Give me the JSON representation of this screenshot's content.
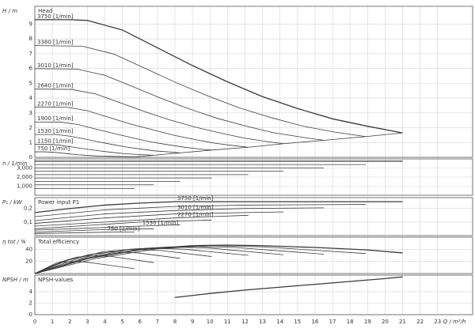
{
  "chart_data": [
    {
      "type": "line",
      "title": "Head",
      "ylabel": "H / m",
      "color": "#3a3a3a",
      "ylim": [
        0,
        10.2
      ],
      "yticks": [
        0,
        1,
        2,
        3,
        4,
        5,
        6,
        7,
        8,
        9
      ],
      "grid": true,
      "series": [
        {
          "name": "3750 [1/min]",
          "x": [
            0,
            2,
            3,
            5,
            7,
            9,
            11,
            13,
            15,
            17,
            19,
            21
          ],
          "values": [
            9.3,
            9.3,
            9.25,
            8.6,
            7.4,
            6.2,
            5.1,
            4.1,
            3.3,
            2.6,
            2.1,
            1.65
          ]
        },
        {
          "name": "3380 [1/min]",
          "x": [
            0,
            2.7,
            4.5,
            6.3,
            8.1,
            9.9,
            11.7,
            13.5,
            15.3,
            17.1,
            18.9
          ],
          "values": [
            7.55,
            7.51,
            6.98,
            6.01,
            5.03,
            4.14,
            3.33,
            2.68,
            2.11,
            1.71,
            1.4
          ]
        },
        {
          "name": "3010 [1/min]",
          "x": [
            0,
            2.4,
            4,
            5.6,
            7.2,
            8.8,
            10.4,
            12,
            13.6,
            15.3,
            16.5
          ],
          "values": [
            5.99,
            5.96,
            5.54,
            4.77,
            3.99,
            3.28,
            2.64,
            2.13,
            1.67,
            1.35,
            1.15
          ]
        },
        {
          "name": "2640 [1/min]",
          "x": [
            0,
            2.1,
            3.5,
            4.9,
            6.3,
            7.7,
            9.2,
            10.6,
            12,
            13.4,
            14.2
          ],
          "values": [
            4.61,
            4.59,
            4.27,
            3.67,
            3.08,
            2.53,
            2.03,
            1.64,
            1.29,
            1.04,
            0.92
          ]
        },
        {
          "name": "2270 [1/min]",
          "x": [
            0,
            1.8,
            3,
            4.2,
            5.4,
            6.7,
            7.9,
            9.1,
            10.3,
            11.5,
            12.2
          ],
          "values": [
            3.4,
            3.39,
            3.15,
            2.71,
            2.27,
            1.87,
            1.5,
            1.21,
            0.95,
            0.77,
            0.68
          ]
        },
        {
          "name": "1900 [1/min]",
          "x": [
            0,
            1.5,
            2.5,
            3.5,
            4.6,
            5.6,
            6.6,
            7.6,
            8.6,
            9.6,
            10.1
          ],
          "values": [
            2.39,
            2.38,
            2.21,
            1.9,
            1.59,
            1.31,
            1.05,
            0.85,
            0.67,
            0.54,
            0.49
          ]
        },
        {
          "name": "1530 [1/min]",
          "x": [
            0,
            1.2,
            2,
            2.9,
            3.7,
            4.5,
            5.3,
            6.1,
            6.9,
            7.8,
            8.3
          ],
          "values": [
            1.54,
            1.54,
            1.43,
            1.23,
            1.03,
            0.85,
            0.68,
            0.55,
            0.43,
            0.35,
            0.3
          ]
        },
        {
          "name": "1150 [1/min]",
          "x": [
            0,
            0.9,
            1.5,
            2.1,
            2.8,
            3.4,
            4,
            4.6,
            5.2,
            5.8,
            6.8
          ],
          "values": [
            0.87,
            0.87,
            0.81,
            0.7,
            0.58,
            0.48,
            0.39,
            0.31,
            0.24,
            0.2,
            0.14
          ]
        },
        {
          "name": "750 [1/min]",
          "x": [
            0,
            0.6,
            1.2,
            1.8,
            2.4,
            3,
            3.6,
            4.2,
            5.7
          ],
          "values": [
            0.37,
            0.37,
            0.33,
            0.25,
            0.18,
            0.13,
            0.09,
            0.07,
            0.03
          ]
        },
        {
          "x": [
            5.7,
            6.8,
            8.3,
            10.1,
            12.2,
            14.2,
            16.5,
            18.9,
            21
          ],
          "values": [
            0.03,
            0.14,
            0.3,
            0.49,
            0.68,
            0.92,
            1.15,
            1.4,
            1.65
          ]
        }
      ]
    },
    {
      "type": "line",
      "ylabel": "n / 1/min",
      "color": "#3a3a3a",
      "ylim": [
        0,
        4000
      ],
      "yticks": [
        {
          "value": 1000,
          "label": "1,000"
        },
        {
          "value": 2000,
          "label": "2,000"
        },
        {
          "value": 3000,
          "label": "3,000"
        }
      ],
      "grid": true,
      "series": [
        {
          "x": [
            0,
            21
          ],
          "values": [
            3750,
            3750
          ]
        },
        {
          "x": [
            0,
            18.9
          ],
          "values": [
            3380,
            3380
          ]
        },
        {
          "x": [
            0,
            16.5
          ],
          "values": [
            3010,
            3010
          ]
        },
        {
          "x": [
            0,
            14.2
          ],
          "values": [
            2640,
            2640
          ]
        },
        {
          "x": [
            0,
            12.2
          ],
          "values": [
            2270,
            2270
          ]
        },
        {
          "x": [
            0,
            10.1
          ],
          "values": [
            1900,
            1900
          ]
        },
        {
          "x": [
            0,
            8.3
          ],
          "values": [
            1530,
            1530
          ]
        },
        {
          "x": [
            0,
            6.8
          ],
          "values": [
            1150,
            1150
          ]
        },
        {
          "x": [
            0,
            5.7
          ],
          "values": [
            750,
            750
          ]
        }
      ]
    },
    {
      "type": "line",
      "title": "Power input P1",
      "ylabel": "P₁ / kW",
      "color": "#3a3a3a",
      "ylim": [
        0,
        0.28
      ],
      "yticks": [
        {
          "value": 0.1,
          "label": "0,1"
        },
        {
          "value": 0.2,
          "label": "0,2"
        }
      ],
      "grid": true,
      "series": [
        {
          "name": "3750 [1/min]",
          "x": [
            0,
            2,
            4,
            6,
            8,
            12,
            16,
            21
          ],
          "values": [
            0.17,
            0.2,
            0.225,
            0.24,
            0.25,
            0.25,
            0.25,
            0.25
          ]
        },
        {
          "x": [
            0,
            4,
            8,
            12,
            18.9
          ],
          "values": [
            0.14,
            0.19,
            0.215,
            0.225,
            0.23
          ]
        },
        {
          "name": "3010 [1/min]",
          "x": [
            0,
            4,
            8,
            12,
            16.5
          ],
          "values": [
            0.11,
            0.16,
            0.185,
            0.2,
            0.205
          ]
        },
        {
          "x": [
            0,
            4,
            8,
            14.2
          ],
          "values": [
            0.09,
            0.13,
            0.16,
            0.175
          ]
        },
        {
          "name": "2270 [1/min]",
          "x": [
            0,
            4,
            8,
            12.2
          ],
          "values": [
            0.07,
            0.1,
            0.13,
            0.15
          ]
        },
        {
          "x": [
            0,
            3,
            6,
            10.1
          ],
          "values": [
            0.05,
            0.075,
            0.1,
            0.115
          ]
        },
        {
          "name": "1530 [1/min]",
          "x": [
            0,
            3,
            6,
            8.3
          ],
          "values": [
            0.04,
            0.055,
            0.07,
            0.08
          ]
        },
        {
          "x": [
            0,
            2,
            4,
            6.8
          ],
          "values": [
            0.025,
            0.035,
            0.045,
            0.05
          ]
        },
        {
          "name": "750 [1/min]",
          "x": [
            0,
            2,
            4,
            5.7
          ],
          "values": [
            0.015,
            0.02,
            0.025,
            0.027
          ]
        }
      ]
    },
    {
      "type": "line",
      "title": "Total efficiency",
      "ylabel": "η tot / %",
      "color": "#3a3a3a",
      "ylim": [
        0,
        60
      ],
      "yticks": [
        20,
        40
      ],
      "grid": true,
      "series": [
        {
          "x": [
            0,
            3,
            6,
            9,
            11,
            13,
            16,
            19,
            21
          ],
          "values": [
            0,
            25,
            40,
            46,
            47,
            46,
            43,
            39,
            34
          ]
        },
        {
          "x": [
            0,
            3.5,
            7,
            10,
            13,
            18.9
          ],
          "values": [
            0,
            25,
            41,
            46,
            44,
            33
          ]
        },
        {
          "x": [
            0,
            3.1,
            6.2,
            8.8,
            11.4,
            16.5
          ],
          "values": [
            0,
            25,
            40,
            45,
            43,
            32
          ]
        },
        {
          "x": [
            0,
            2.7,
            5.4,
            7.7,
            10,
            14.2
          ],
          "values": [
            0,
            24,
            40,
            44,
            42,
            31
          ]
        },
        {
          "x": [
            0,
            2.3,
            4.6,
            6.6,
            8.6,
            12.2
          ],
          "values": [
            0,
            23,
            38,
            42,
            40,
            30
          ]
        },
        {
          "x": [
            0,
            1.9,
            3.9,
            5.5,
            7.2,
            10.1
          ],
          "values": [
            0,
            22,
            36,
            40,
            38,
            28
          ]
        },
        {
          "x": [
            0,
            1.6,
            3.2,
            4.5,
            5.9,
            8.3
          ],
          "values": [
            0,
            20,
            32,
            36,
            34,
            25
          ]
        },
        {
          "x": [
            0,
            1.2,
            2.4,
            3.4,
            4.4,
            6.8
          ],
          "values": [
            0,
            17,
            27,
            30,
            28,
            18
          ]
        },
        {
          "x": [
            0,
            0.8,
            1.5,
            2.2,
            2.9,
            5.7
          ],
          "values": [
            0,
            11,
            18,
            20,
            19,
            8
          ]
        }
      ]
    },
    {
      "type": "line",
      "title": "NPSH-values",
      "ylabel": "NPSH / m",
      "color": "#3a3a3a",
      "ylim": [
        0,
        6.9
      ],
      "yticks": [
        0,
        2,
        4
      ],
      "grid": true,
      "xlabel": "Q / m³/h",
      "xlim": [
        0,
        25
      ],
      "xticks": [
        0,
        1,
        2,
        3,
        4,
        5,
        6,
        7,
        8,
        9,
        10,
        11,
        12,
        13,
        14,
        15,
        16,
        17,
        18,
        19,
        20,
        21,
        22,
        23
      ],
      "series": [
        {
          "x": [
            8,
            10,
            12,
            14,
            16,
            18,
            20,
            21
          ],
          "values": [
            3.0,
            3.7,
            4.3,
            4.8,
            5.3,
            5.8,
            6.3,
            6.6
          ]
        }
      ]
    }
  ]
}
